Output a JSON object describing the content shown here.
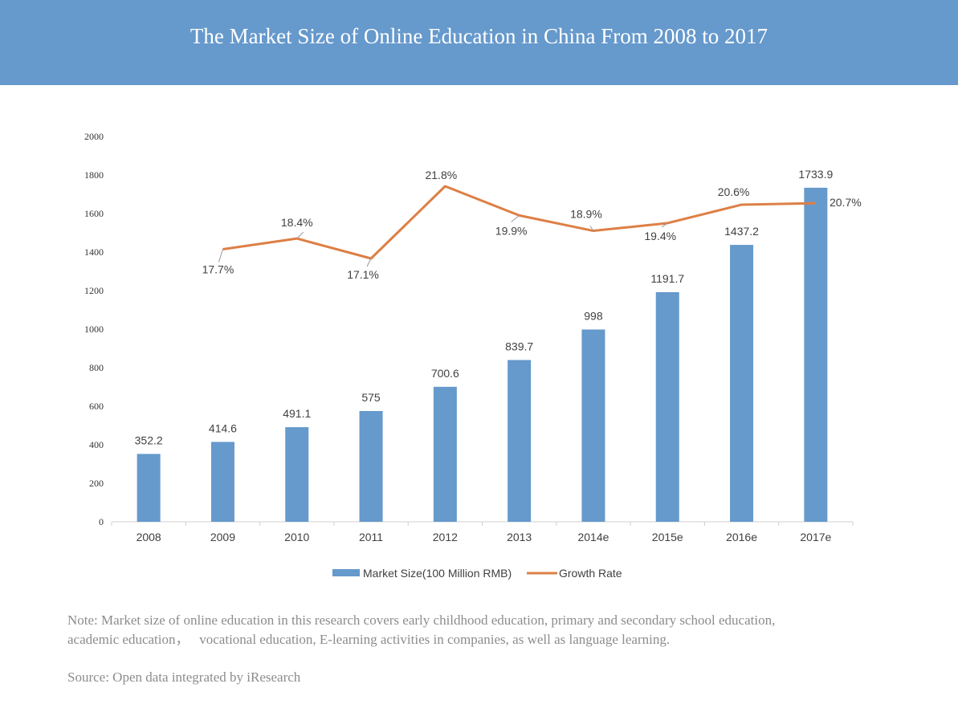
{
  "title": "The Market Size of  Online Education in China From 2008 to 2017",
  "note_line1": "Note: Market size of online education in this research covers early childhood education, primary and secondary school education,",
  "note_line2": "academic education，   vocational education, E-learning activities in companies, as well as language learning.",
  "source": "Source: Open data integrated by iResearch",
  "colors": {
    "header": "#6699cc",
    "bar": "#6699cc",
    "line": "#dd7f45"
  },
  "chart_data": {
    "type": "bar",
    "categories": [
      "2008",
      "2009",
      "2010",
      "2011",
      "2012",
      "2013",
      "2014e",
      "2015e",
      "2016e",
      "2017e"
    ],
    "ylim": [
      0,
      2000
    ],
    "yticks": [
      "0",
      "200",
      "400",
      "600",
      "800",
      "1000",
      "1200",
      "1400",
      "1600",
      "1800",
      "2000"
    ],
    "grid": false,
    "legend_position": "bottom",
    "series": [
      {
        "name": "Market Size(100 Million RMB)",
        "type": "bar",
        "values": [
          352.2,
          414.6,
          491.1,
          575,
          700.6,
          839.7,
          998,
          1191.7,
          1437.2,
          1733.9
        ],
        "labels": [
          "352.2",
          "414.6",
          "491.1",
          "575",
          "700.6",
          "839.7",
          "998",
          "1191.7",
          "1437.2",
          "1733.9"
        ]
      },
      {
        "name": "Growth Rate",
        "type": "line",
        "values": [
          null,
          17.7,
          18.4,
          17.1,
          21.8,
          19.9,
          18.9,
          19.4,
          20.6,
          20.7
        ],
        "labels": [
          "",
          "17.7%",
          "18.4%",
          "17.1%",
          "21.8%",
          "19.9%",
          "18.9%",
          "19.4%",
          "20.6%",
          "20.7%"
        ]
      }
    ]
  }
}
